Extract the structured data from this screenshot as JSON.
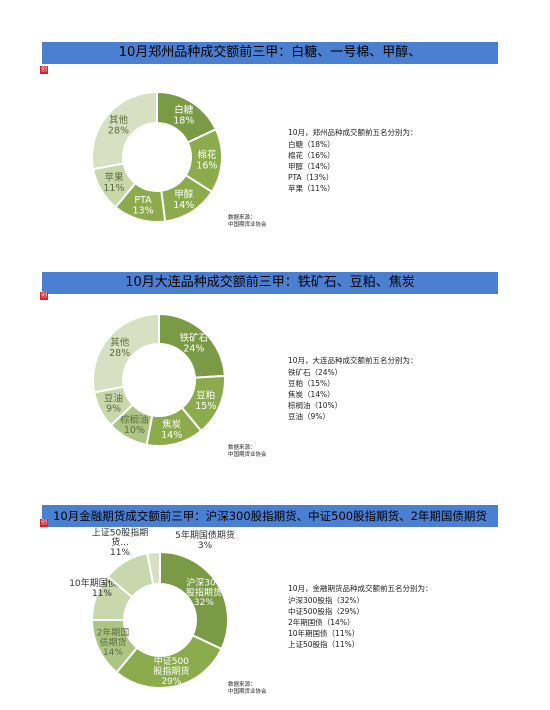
{
  "colors": {
    "dark": "#7a9a45",
    "mid": "#8bab4c",
    "light": "#adc584",
    "lighter": "#c9d7ac",
    "lightest": "#d8e0c4",
    "banner": "#4a7fd1",
    "red": "#d8232a"
  },
  "marker_text": "创",
  "sections": [
    {
      "banner_title": "10月郑州品种成交额前三甲：白糖、一号棉、甲醇、",
      "info_intro": "10月，郑州品种成交额前五名分别为：",
      "info_lines": [
        "白糖（18%）",
        "棉花（16%）",
        "甲醇（14%）",
        "PTA（13%）",
        "苹果（11%）"
      ],
      "source_label": "数据来源：",
      "source_name": "中国期货业协会"
    },
    {
      "banner_title": "10月大连品种成交额前三甲：铁矿石、豆粕、焦炭",
      "info_intro": "10月，大连品种成交额前五名分别为：",
      "info_lines": [
        "铁矿石（24%）",
        "豆粕（15%）",
        "焦炭（14%）",
        "棕榈油（10%）",
        "豆油（9%）"
      ],
      "source_label": "数据来源：",
      "source_name": "中国期货业协会"
    },
    {
      "banner_title": "10月金融期货成交额前三甲：沪深300股指期货、中证500股指期货、2年期国债期货",
      "info_intro": "10月，金融期货品种成交额前五名分别为：",
      "info_lines": [
        "沪深300股指（32%）",
        "中证500股指（29%）",
        "2年期国债（14%）",
        "10年期国债（11%）",
        "上证50股指（11%）"
      ],
      "source_label": "数据来源：",
      "source_name": "中国期货业协会"
    }
  ],
  "chart_data": [
    {
      "type": "pie",
      "donut": true,
      "categories": [
        "白糖",
        "棉花",
        "甲醇",
        "PTA",
        "苹果",
        "其他"
      ],
      "values": [
        18,
        16,
        14,
        13,
        11,
        28
      ],
      "labels": [
        "18%",
        "16%",
        "14%",
        "13%",
        "11%",
        "28%"
      ],
      "colors": [
        "#7a9a45",
        "#8bab4c",
        "#8bab4c",
        "#8bab4c",
        "#c9d7ac",
        "#d8e0c4"
      ],
      "label_color": [
        "#ffffff",
        "#ffffff",
        "#ffffff",
        "#ffffff",
        "#5a6b3c",
        "#5a6b3c"
      ]
    },
    {
      "type": "pie",
      "donut": true,
      "categories": [
        "铁矿石",
        "豆粕",
        "焦炭",
        "棕榈油",
        "豆油",
        "其他"
      ],
      "values": [
        24,
        15,
        14,
        10,
        9,
        28
      ],
      "labels": [
        "24%",
        "15%",
        "14%",
        "10%",
        "9%",
        "28%"
      ],
      "colors": [
        "#7a9a45",
        "#8bab4c",
        "#8bab4c",
        "#adc584",
        "#c9d7ac",
        "#d8e0c4"
      ],
      "label_color": [
        "#ffffff",
        "#ffffff",
        "#ffffff",
        "#5a6b3c",
        "#5a6b3c",
        "#5a6b3c"
      ]
    },
    {
      "type": "pie",
      "donut": true,
      "categories": [
        "沪深300股指期货",
        "中证500股指期货",
        "2年期国债期货",
        "10年期国债期货",
        "上证50股指期货",
        "5年期国债期货"
      ],
      "display_names": [
        [
          "沪深300",
          "股指期货"
        ],
        [
          "中证500",
          "股指期货"
        ],
        [
          "2年期国",
          "债期货"
        ],
        [
          "10年期国债期货"
        ],
        [
          "上证50股指期",
          "货..."
        ],
        [
          "5年期国债期货"
        ]
      ],
      "values": [
        32,
        29,
        14,
        11,
        11,
        3
      ],
      "labels": [
        "32%",
        "29%",
        "14%",
        "11%",
        "11%",
        "3%"
      ],
      "colors": [
        "#7a9a45",
        "#8bab4c",
        "#adc584",
        "#c9d7ac",
        "#c9d7ac",
        "#d8e0c4"
      ],
      "label_color": [
        "#ffffff",
        "#ffffff",
        "#5a6b3c",
        "#5a6b3c",
        "#5a6b3c",
        "#5a6b3c"
      ]
    }
  ]
}
